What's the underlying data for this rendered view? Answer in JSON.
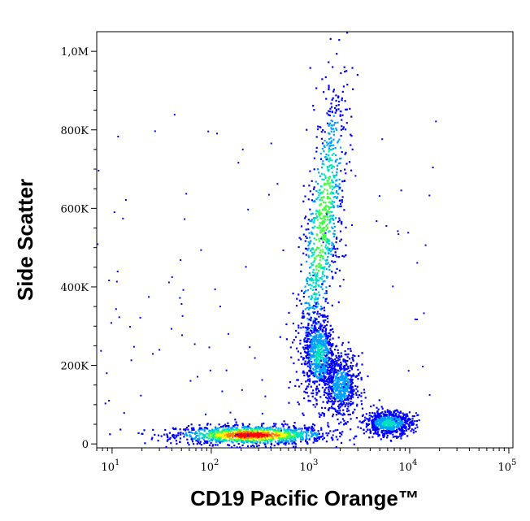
{
  "chart_data": {
    "type": "scatter",
    "title": "",
    "xlabel": "CD19 Pacific Orange™",
    "ylabel": "Side Scatter",
    "x_scale": "log",
    "xlim": [
      7,
      110000
    ],
    "ylim": [
      -10000,
      1050000
    ],
    "grid": false,
    "legend": "none",
    "x_ticks": [
      {
        "value": 10,
        "base": "10",
        "exp": "1"
      },
      {
        "value": 100,
        "base": "10",
        "exp": "2"
      },
      {
        "value": 1000,
        "base": "10",
        "exp": "3"
      },
      {
        "value": 10000,
        "base": "10",
        "exp": "4"
      },
      {
        "value": 100000,
        "base": "10",
        "exp": "5"
      }
    ],
    "y_ticks": [
      {
        "value": 0,
        "label": "0"
      },
      {
        "value": 200000,
        "label": "200K"
      },
      {
        "value": 400000,
        "label": "400K"
      },
      {
        "value": 600000,
        "label": "600K"
      },
      {
        "value": 800000,
        "label": "800K"
      },
      {
        "value": 1000000,
        "label": "1,0M"
      }
    ],
    "density_colormap": [
      "#0000ff",
      "#00a0ff",
      "#00e0c0",
      "#40ff40",
      "#ffff00",
      "#ff8000",
      "#ff0000"
    ],
    "populations": [
      {
        "x_center": 250,
        "y_center": 25000,
        "x_spread_decades": 0.38,
        "y_spread": 12000,
        "peak_density": 1.0
      },
      {
        "x_center": 1300,
        "y_center": 560000,
        "x_spread_decades": 0.09,
        "y_spread": 190000,
        "peak_density": 0.55
      },
      {
        "x_center": 1200,
        "y_center": 230000,
        "x_spread_decades": 0.08,
        "y_spread": 50000,
        "peak_density": 0.35
      },
      {
        "x_center": 2000,
        "y_center": 150000,
        "x_spread_decades": 0.09,
        "y_spread": 40000,
        "peak_density": 0.25
      },
      {
        "x_center": 6000,
        "y_center": 55000,
        "x_spread_decades": 0.12,
        "y_spread": 15000,
        "peak_density": 0.35
      }
    ]
  }
}
